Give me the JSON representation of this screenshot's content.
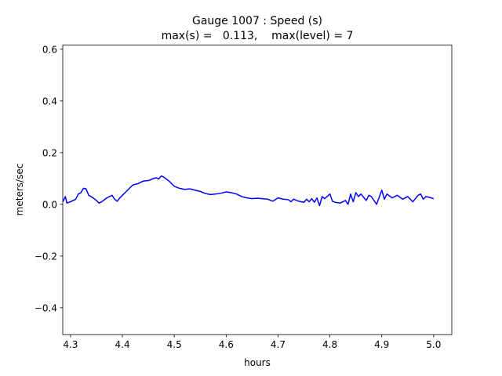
{
  "chart_data": {
    "type": "line",
    "title": "Gauge 1007 : Speed (s)",
    "subtitle": "max(s) =   0.113,    max(level) = 7",
    "x_label": "hours",
    "y_label": "meters/sec",
    "xlim": [
      4.285,
      5.035
    ],
    "ylim": [
      -0.504,
      0.616
    ],
    "xticks": [
      4.3,
      4.4,
      4.5,
      4.6,
      4.7,
      4.8,
      4.9,
      {
        "value": 5.0,
        "label": "5.0"
      }
    ],
    "yticks": [
      {
        "value": -0.4,
        "label": "−0.4"
      },
      {
        "value": -0.2,
        "label": "−0.2"
      },
      {
        "value": 0,
        "label": "0.0"
      },
      0.2,
      0.4,
      0.6
    ],
    "grid": false,
    "x": [
      4.285,
      4.29,
      4.293,
      4.3,
      4.31,
      4.315,
      4.32,
      4.325,
      4.33,
      4.335,
      4.34,
      4.35,
      4.355,
      4.36,
      4.37,
      4.38,
      4.385,
      4.39,
      4.395,
      4.4,
      4.41,
      4.42,
      4.43,
      4.44,
      4.45,
      4.46,
      4.465,
      4.47,
      4.475,
      4.48,
      4.49,
      4.5,
      4.51,
      4.52,
      4.53,
      4.54,
      4.55,
      4.56,
      4.57,
      4.58,
      4.59,
      4.6,
      4.61,
      4.62,
      4.63,
      4.64,
      4.65,
      4.66,
      4.67,
      4.68,
      4.69,
      4.7,
      4.71,
      4.72,
      4.725,
      4.73,
      4.74,
      4.75,
      4.755,
      4.76,
      4.765,
      4.77,
      4.775,
      4.78,
      4.785,
      4.79,
      4.8,
      4.805,
      4.81,
      4.82,
      4.83,
      4.835,
      4.84,
      4.845,
      4.85,
      4.855,
      4.86,
      4.87,
      4.875,
      4.88,
      4.89,
      4.9,
      4.905,
      4.91,
      4.92,
      4.93,
      4.94,
      4.95,
      4.96,
      4.97,
      4.975,
      4.98,
      4.985,
      4.99,
      5.0
    ],
    "series": [
      {
        "name": "s",
        "color": "#0000ff",
        "values": [
          0.01,
          0.03,
          0.005,
          0.01,
          0.02,
          0.04,
          0.045,
          0.062,
          0.06,
          0.035,
          0.03,
          0.015,
          0.005,
          0.01,
          0.025,
          0.035,
          0.02,
          0.012,
          0.025,
          0.035,
          0.055,
          0.075,
          0.08,
          0.09,
          0.092,
          0.1,
          0.103,
          0.098,
          0.11,
          0.105,
          0.09,
          0.07,
          0.062,
          0.058,
          0.06,
          0.055,
          0.05,
          0.042,
          0.038,
          0.04,
          0.043,
          0.048,
          0.045,
          0.04,
          0.03,
          0.025,
          0.022,
          0.024,
          0.022,
          0.02,
          0.012,
          0.025,
          0.02,
          0.018,
          0.01,
          0.02,
          0.012,
          0.008,
          0.02,
          0.01,
          0.022,
          0.008,
          0.025,
          -0.005,
          0.03,
          0.022,
          0.04,
          0.012,
          0.008,
          0.005,
          0.015,
          0.0,
          0.04,
          0.01,
          0.045,
          0.03,
          0.04,
          0.015,
          0.035,
          0.03,
          0.0,
          0.055,
          0.02,
          0.04,
          0.025,
          0.035,
          0.02,
          0.03,
          0.01,
          0.035,
          0.04,
          0.02,
          0.03,
          0.028,
          0.022
        ]
      }
    ]
  }
}
